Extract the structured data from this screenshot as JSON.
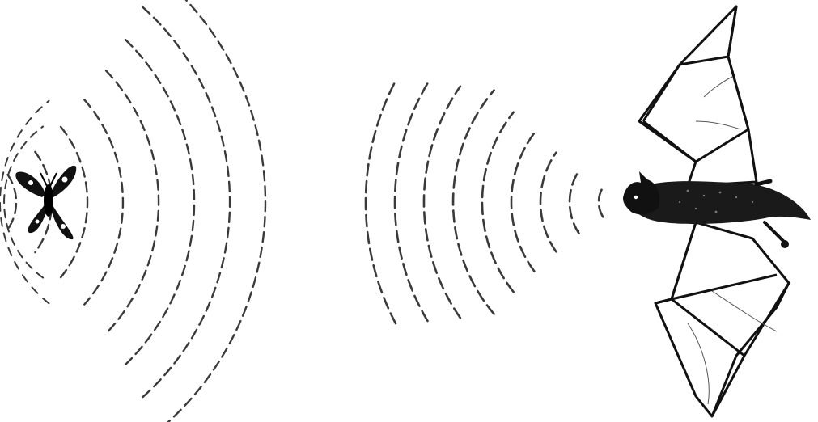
{
  "illustration": {
    "subject": "bat-echolocation",
    "colors": {
      "background": "#ffffff",
      "ink": "#111111",
      "wave": "#3a3a3a"
    },
    "waves": {
      "emitted_count": 9,
      "echo_count": 8
    },
    "icons": [
      "moth-icon",
      "bat-icon"
    ]
  }
}
